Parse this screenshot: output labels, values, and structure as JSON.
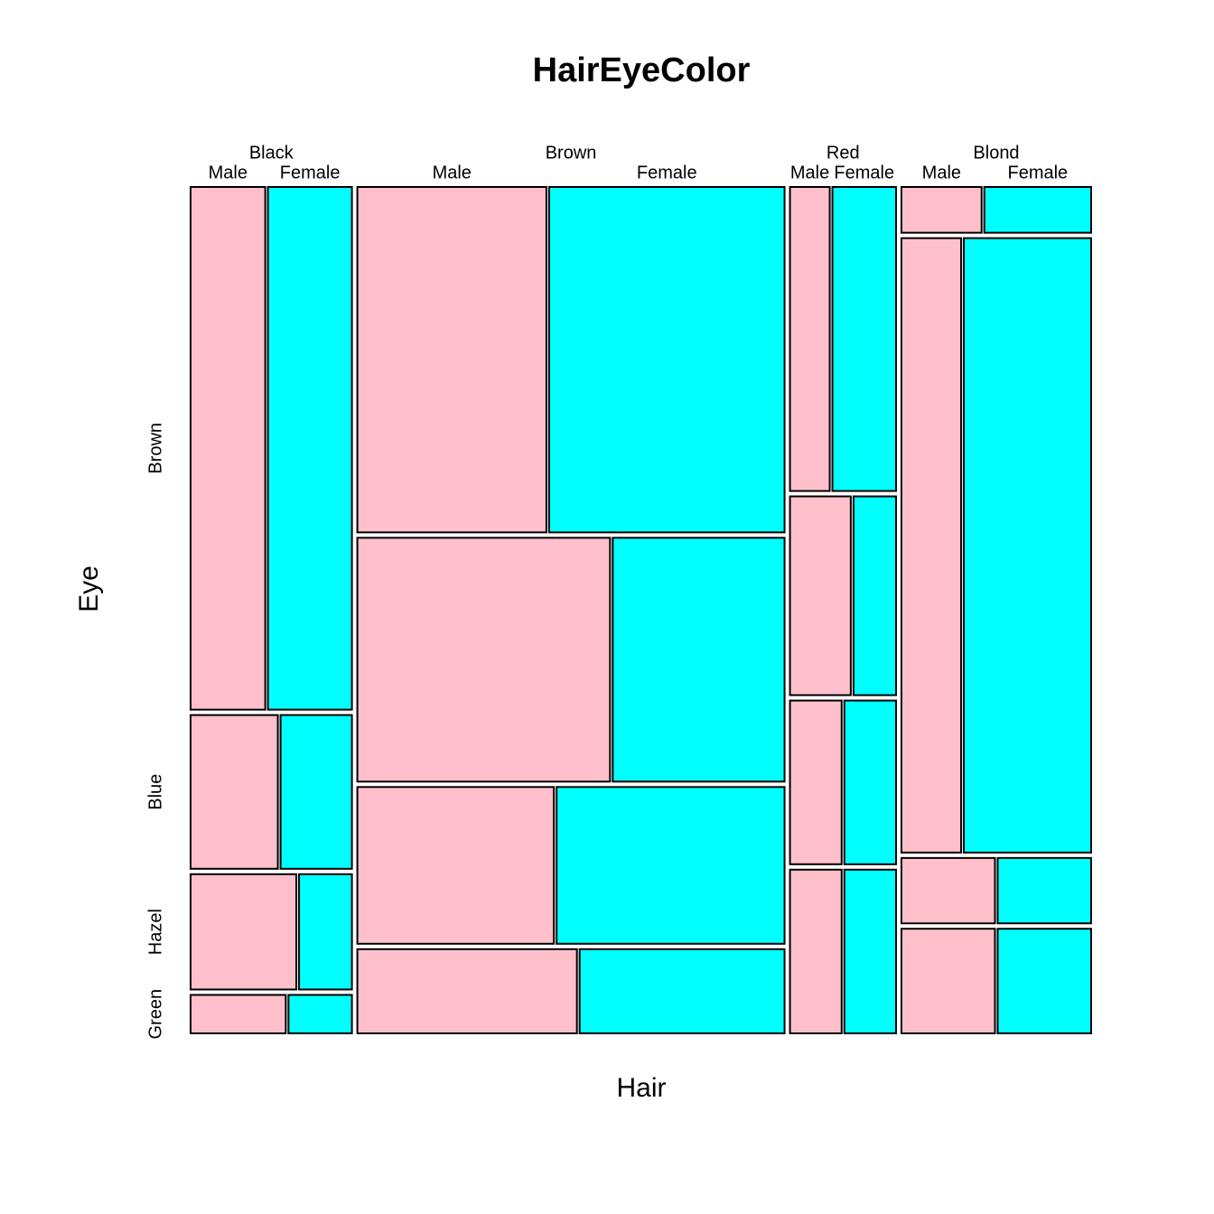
{
  "chart_data": {
    "type": "mosaic",
    "title": "HairEyeColor",
    "x_label": "Hair",
    "y_label": "Eye",
    "hair": [
      "Black",
      "Brown",
      "Red",
      "Blond"
    ],
    "eye": [
      "Brown",
      "Blue",
      "Hazel",
      "Green"
    ],
    "sex": [
      {
        "name": "Male",
        "color": "#ffc0cb"
      },
      {
        "name": "Female",
        "color": "#00ffff"
      }
    ],
    "counts": [
      [
        [
          32,
          36
        ],
        [
          11,
          9
        ],
        [
          10,
          5
        ],
        [
          3,
          2
        ]
      ],
      [
        [
          53,
          66
        ],
        [
          50,
          34
        ],
        [
          25,
          29
        ],
        [
          15,
          14
        ]
      ],
      [
        [
          10,
          16
        ],
        [
          10,
          7
        ],
        [
          7,
          7
        ],
        [
          7,
          7
        ]
      ],
      [
        [
          3,
          4
        ],
        [
          30,
          64
        ],
        [
          5,
          5
        ],
        [
          8,
          8
        ]
      ]
    ]
  }
}
